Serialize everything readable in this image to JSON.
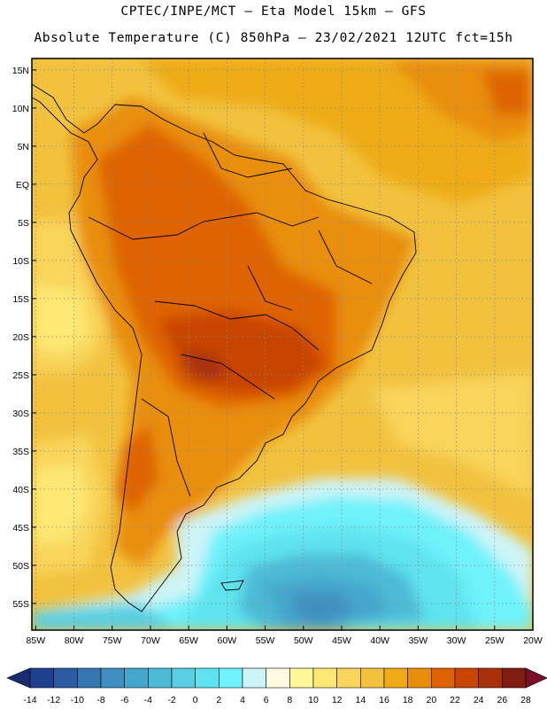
{
  "header": {
    "line1": "CPTEC/INPE/MCT –  Eta Model 15km – GFS",
    "line2": "Absolute Temperature (C) 850hPa – 23/02/2021 12UTC fct=15h"
  },
  "map": {
    "projection": "lat-lon",
    "lat_range": [
      -58.5,
      16.5
    ],
    "lon_range": [
      -85.5,
      -20
    ],
    "grid": "dotted",
    "lat_ticks": [
      "15N",
      "10N",
      "5N",
      "EQ",
      "5S",
      "10S",
      "15S",
      "20S",
      "25S",
      "30S",
      "35S",
      "40S",
      "45S",
      "50S",
      "55S"
    ],
    "lat_values": [
      15,
      10,
      5,
      0,
      -5,
      -10,
      -15,
      -20,
      -25,
      -30,
      -35,
      -40,
      -45,
      -50,
      -55
    ],
    "lon_ticks": [
      "85W",
      "80W",
      "75W",
      "70W",
      "65W",
      "60W",
      "55W",
      "50W",
      "45W",
      "40W",
      "35W",
      "30W",
      "25W",
      "20W"
    ],
    "lon_values": [
      -85,
      -80,
      -75,
      -70,
      -65,
      -60,
      -55,
      -50,
      -45,
      -40,
      -35,
      -30,
      -25,
      -20
    ]
  },
  "legend": {
    "labels": [
      "-14",
      "-12",
      "-10",
      "-8",
      "-6",
      "-4",
      "-2",
      "0",
      "2",
      "4",
      "6",
      "8",
      "10",
      "12",
      "14",
      "16",
      "18",
      "20",
      "22",
      "24",
      "26",
      "28"
    ],
    "colors": [
      "#1f3f8f",
      "#2a5ba3",
      "#3475b2",
      "#3f8fc1",
      "#45a6cc",
      "#4dbad6",
      "#58cfe2",
      "#5fe3ee",
      "#6ff2fb",
      "#cdf4f8",
      "#fffbe3",
      "#fff79a",
      "#fde873",
      "#f9d55c",
      "#f2c23f",
      "#eeab17",
      "#e98e09",
      "#df6304",
      "#c84504",
      "#a8300a",
      "#7e1d12"
    ],
    "left_arrow_color": "#1a2a70",
    "right_arrow_color": "#7a0f2a",
    "unit": "C"
  }
}
